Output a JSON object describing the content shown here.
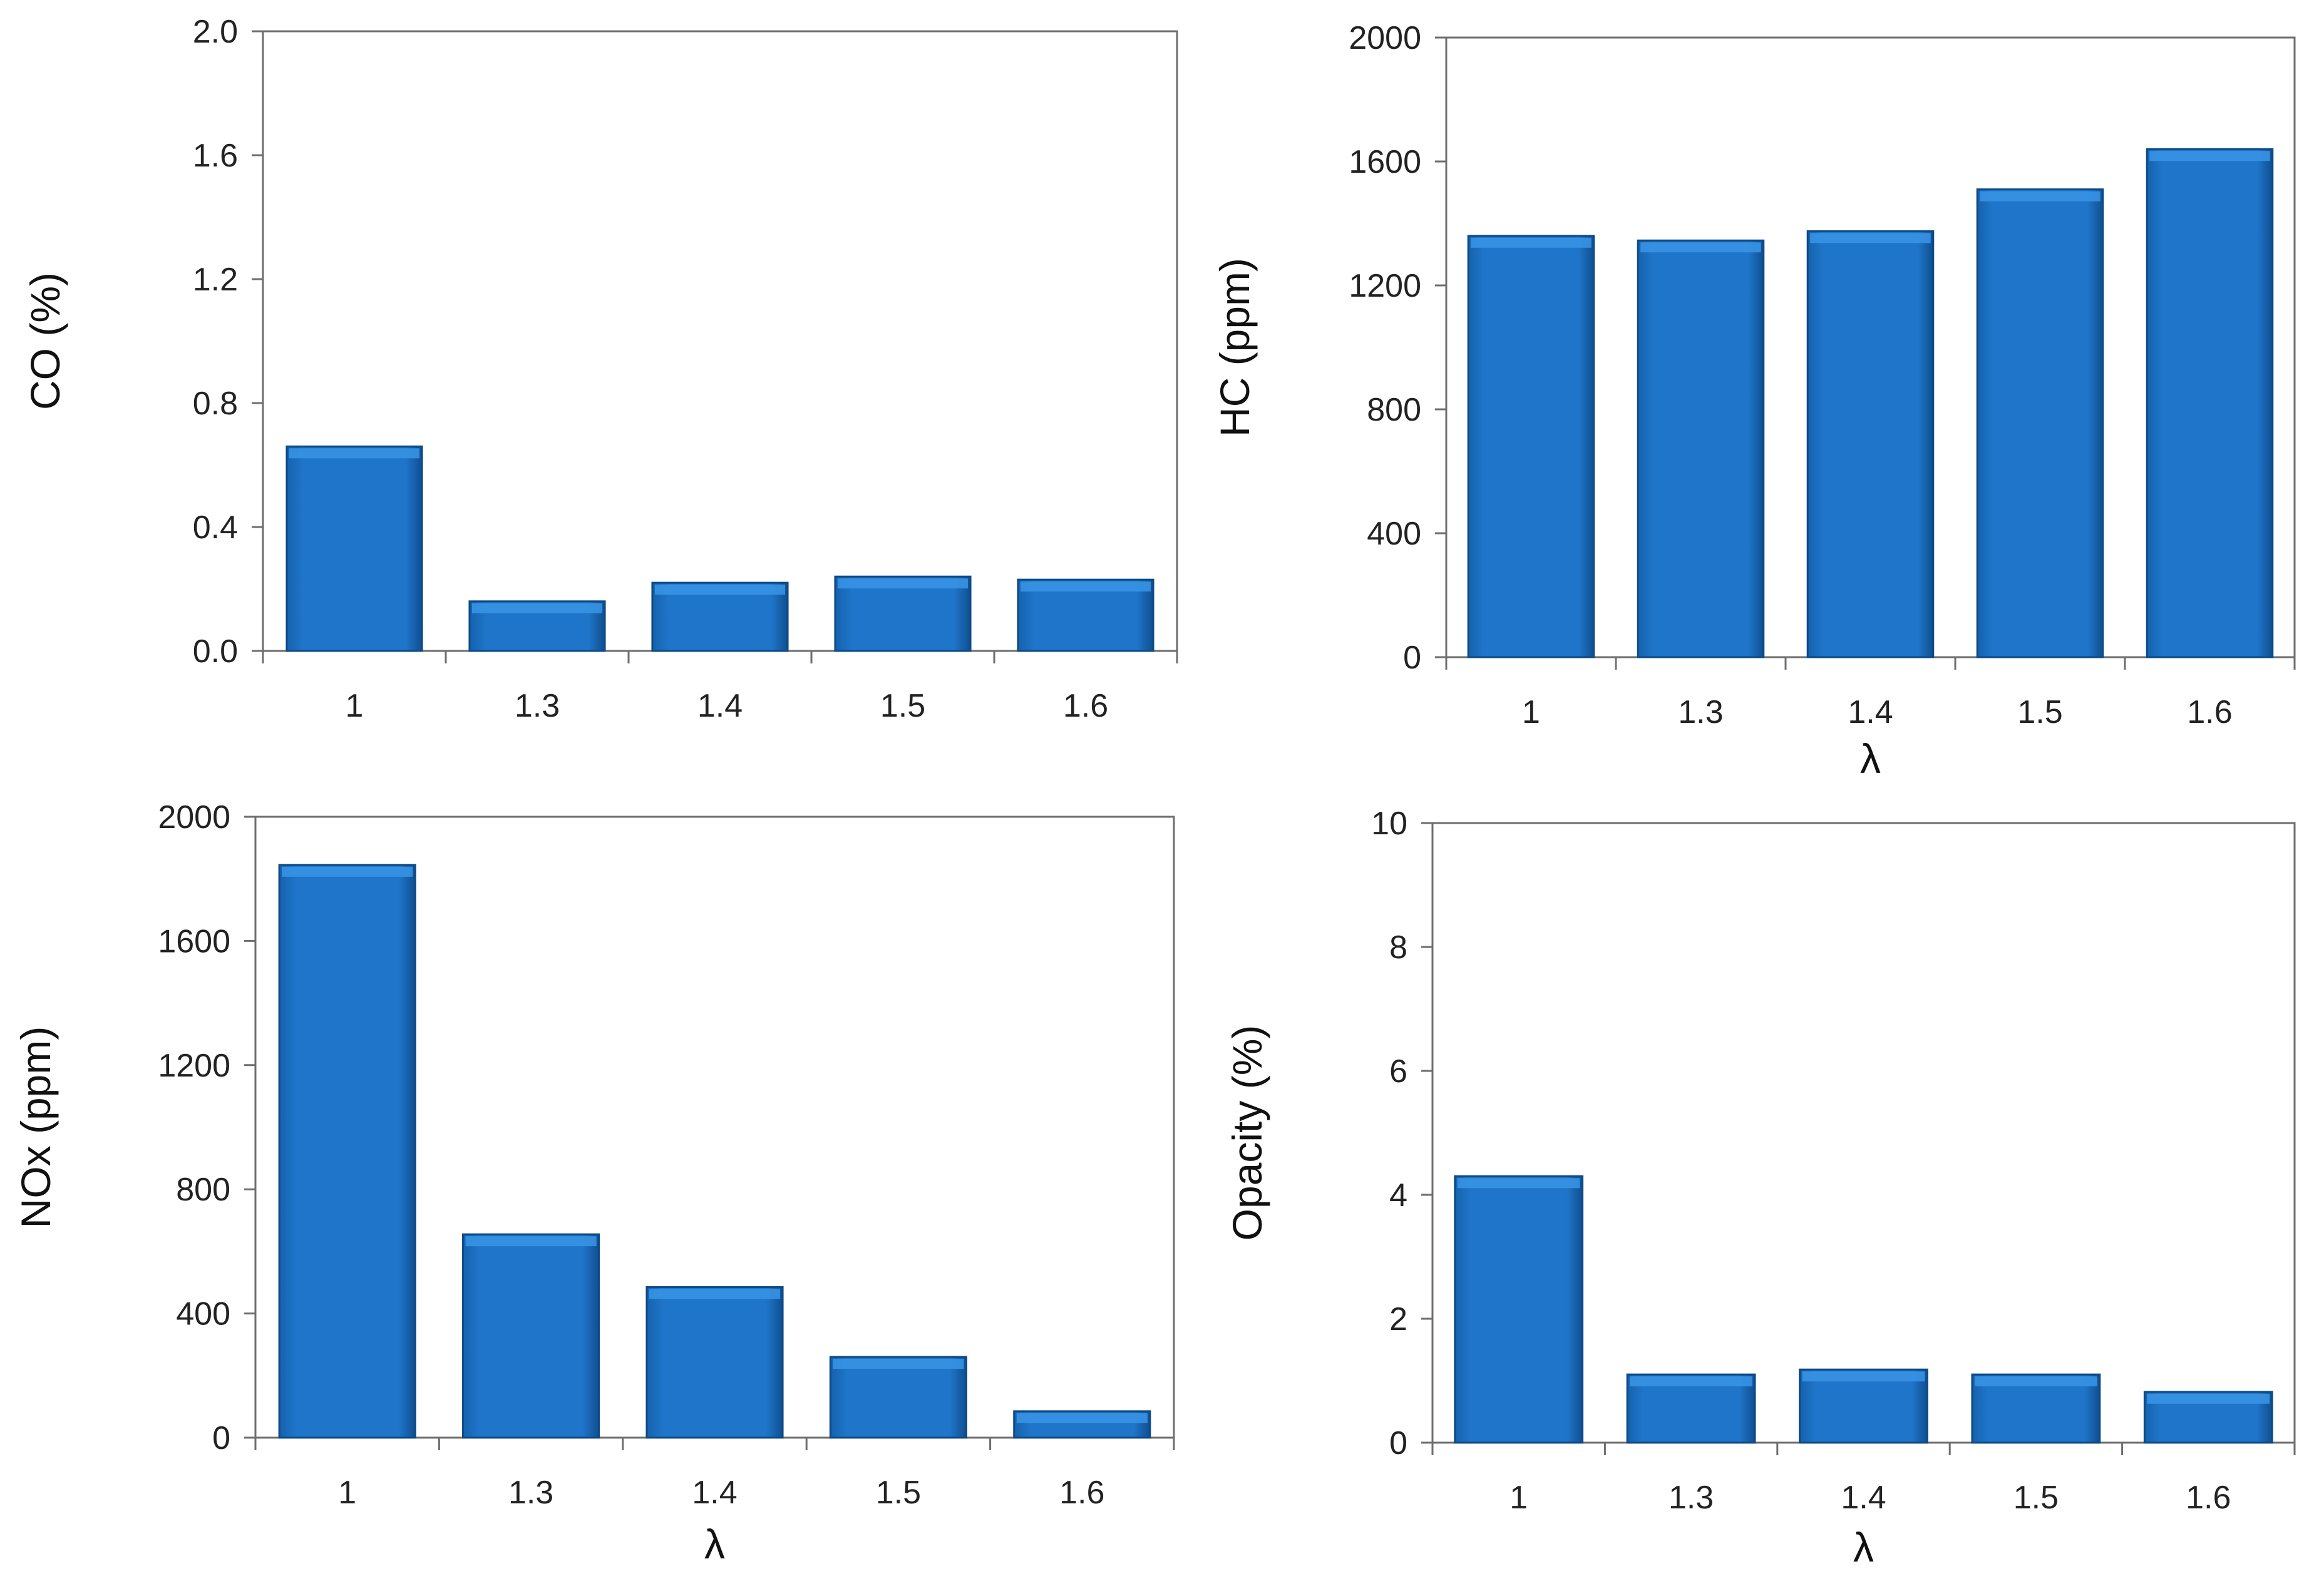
{
  "colors": {
    "bar": "#1F75C9",
    "bar_top": "#3A95E6",
    "bar_edge": "#0D4A86"
  },
  "chart_data": [
    {
      "type": "bar",
      "title": "",
      "xlabel": "",
      "ylabel": "CO (%)",
      "categories": [
        "1",
        "1.3",
        "1.4",
        "1.5",
        "1.6"
      ],
      "values": [
        0.66,
        0.16,
        0.22,
        0.24,
        0.23
      ],
      "ylim": [
        0,
        2
      ],
      "yticks": [
        "0.0",
        "0.4",
        "0.8",
        "1.2",
        "1.6",
        "2.0"
      ],
      "grid": false,
      "legend": "none"
    },
    {
      "type": "bar",
      "title": "",
      "xlabel": "λ",
      "ylabel": "HC (ppm)",
      "categories": [
        "1",
        "1.3",
        "1.4",
        "1.5",
        "1.6"
      ],
      "values": [
        1360,
        1345,
        1375,
        1510,
        1640
      ],
      "ylim": [
        0,
        2000
      ],
      "yticks": [
        "0",
        "400",
        "800",
        "1200",
        "1600",
        "2000"
      ],
      "grid": false,
      "legend": "none"
    },
    {
      "type": "bar",
      "title": "",
      "xlabel": "λ",
      "ylabel": "NOx (ppm)",
      "categories": [
        "1",
        "1.3",
        "1.4",
        "1.5",
        "1.6"
      ],
      "values": [
        1845,
        655,
        485,
        260,
        85
      ],
      "ylim": [
        0,
        2000
      ],
      "yticks": [
        "0",
        "400",
        "800",
        "1200",
        "1600",
        "2000"
      ],
      "grid": false,
      "legend": "none"
    },
    {
      "type": "bar",
      "title": "",
      "xlabel": "λ",
      "ylabel": "Opacity (%)",
      "categories": [
        "1",
        "1.3",
        "1.4",
        "1.5",
        "1.6"
      ],
      "values": [
        4.3,
        1.1,
        1.18,
        1.1,
        0.82
      ],
      "ylim": [
        0,
        10
      ],
      "yticks": [
        "0",
        "2",
        "4",
        "6",
        "8",
        "10"
      ],
      "grid": false,
      "legend": "none"
    }
  ]
}
